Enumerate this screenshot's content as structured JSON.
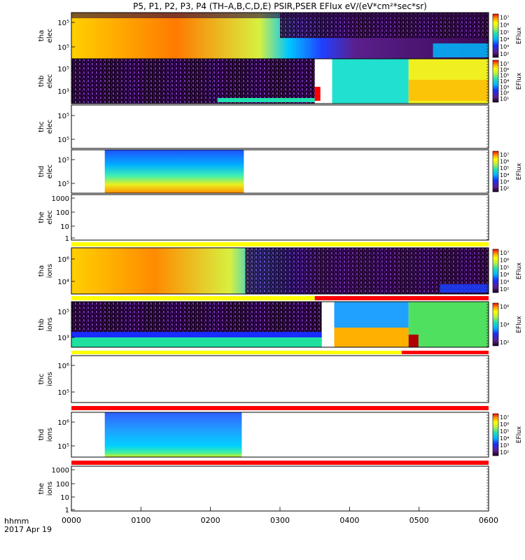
{
  "title": "P5, P1, P2, P3, P4 (TH–A,B,C,D,E) PSIR,PSER EFlux eV/(eV*cm²*sec*sr)",
  "footer": {
    "time_label": "hhmm",
    "date_label": "2017 Apr 19"
  },
  "colors": {
    "red_bar": "#ff0000",
    "yellow_bar": "#ffff00",
    "dark_bg": "#1a0024",
    "noise": "#5b1f8c"
  },
  "chart_data": {
    "type": "heatmap",
    "x_unit": "hhmm",
    "x_range": [
      0,
      600
    ],
    "x_ticks": [
      "0000",
      "0100",
      "0200",
      "0300",
      "0400",
      "0500",
      "0600"
    ],
    "panels": [
      {
        "id": "tha-elec",
        "label": [
          "tha",
          "elec"
        ],
        "yticks": [
          "10⁵",
          "10⁵"
        ],
        "has_data": true,
        "colorbar": {
          "label": "EFlux",
          "ticks": [
            "10⁷",
            "10⁶",
            "10⁵",
            "10⁴",
            "10³",
            "10²"
          ]
        }
      },
      {
        "id": "thb-elec",
        "label": [
          "thb",
          "elec"
        ],
        "yticks": [
          "10⁵",
          "10³"
        ],
        "has_data": true,
        "colorbar": {
          "label": "EFlux",
          "ticks": [
            "10⁷",
            "10⁶",
            "10⁵",
            "10⁴",
            "10³",
            "10²",
            "10¹"
          ]
        }
      },
      {
        "id": "thc-elec",
        "label": [
          "thc",
          "elec"
        ],
        "yticks": [
          "10⁵",
          "10⁵"
        ],
        "has_data": false
      },
      {
        "id": "thd-elec",
        "label": [
          "thd",
          "elec"
        ],
        "yticks": [
          "10⁵",
          "10⁵"
        ],
        "has_data": true,
        "colorbar": {
          "label": "EFlux",
          "ticks": [
            "10⁷",
            "10⁶",
            "10⁵",
            "10⁴",
            "10³",
            "10²"
          ]
        }
      },
      {
        "id": "the-elec",
        "label": [
          "the",
          "elec"
        ],
        "yticks": [
          "1000",
          "100",
          "10",
          "1"
        ],
        "has_data": false
      },
      {
        "id": "tha-ions",
        "label": [
          "tha",
          "ions"
        ],
        "yticks": [
          "10⁶",
          "10⁴"
        ],
        "has_data": true,
        "colorbar": {
          "label": "EFlux",
          "ticks": [
            "10⁷",
            "10⁶",
            "10⁵",
            "10⁴",
            "10³",
            "10²"
          ]
        }
      },
      {
        "id": "thb-ions",
        "label": [
          "thb",
          "ions"
        ],
        "yticks": [
          "10⁵",
          "10³"
        ],
        "has_data": true,
        "colorbar": {
          "label": "EFlux",
          "ticks": [
            "10⁶",
            "10⁴",
            "10²"
          ]
        }
      },
      {
        "id": "thc-ions",
        "label": [
          "thc",
          "ions"
        ],
        "yticks": [
          "10⁶",
          "10⁵"
        ],
        "has_data": false
      },
      {
        "id": "thd-ions",
        "label": [
          "thd",
          "ions"
        ],
        "yticks": [
          "10⁶",
          "10⁵"
        ],
        "has_data": true,
        "colorbar": {
          "label": "EFlux",
          "ticks": [
            "10⁷",
            "10⁶",
            "10⁵",
            "10⁴",
            "10³",
            "10²"
          ]
        }
      },
      {
        "id": "the-ions",
        "label": [
          "the",
          "ions"
        ],
        "yticks": [
          "1000",
          "100",
          "10",
          "1"
        ],
        "has_data": false
      }
    ]
  }
}
